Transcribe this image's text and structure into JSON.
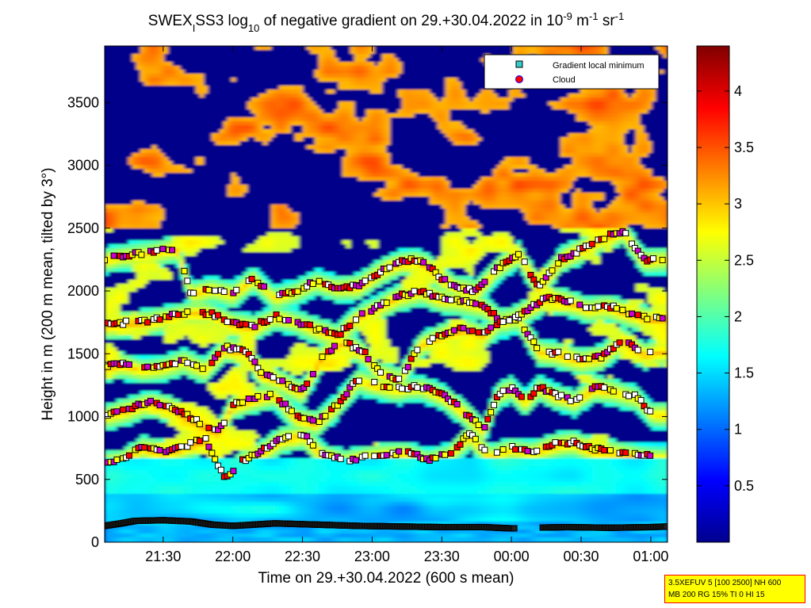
{
  "chart_data": {
    "type": "heatmap",
    "title": {
      "pre": "SWEX",
      "sub1": "I",
      "mid1": "SS3 log",
      "sub2": "10",
      "mid2": " of negative gradient on 29.+30.04.2022 in 10",
      "sup1": "-9",
      "mid3": " m",
      "sup2": "-1",
      "mid4": " sr",
      "sup3": "-1"
    },
    "xlabel": "Time on 29.+30.04.2022 (600 s mean)",
    "ylabel": "Height in m (200 m mean, tilted by 3°)",
    "x_ticks": [
      "21:30",
      "22:00",
      "22:30",
      "23:00",
      "23:30",
      "00:00",
      "00:30",
      "01:00"
    ],
    "y_ticks": [
      "0",
      "500",
      "1000",
      "1500",
      "2000",
      "2500",
      "3000",
      "3500"
    ],
    "ylim": [
      0,
      3950
    ],
    "x_hours_range": [
      21.08,
      25.12
    ],
    "colorbar": {
      "ticks": [
        "0.5",
        "1",
        "1.5",
        "2",
        "2.5",
        "3",
        "3.5",
        "4"
      ],
      "range": [
        0,
        4.4
      ],
      "colormap": "jet"
    },
    "legend": {
      "position": "top-right",
      "entries": [
        {
          "label": "Gradient local minimum",
          "marker": "square",
          "color": "#33cccc"
        },
        {
          "label": "Cloud",
          "marker": "circle",
          "color": "#ff0000"
        }
      ]
    },
    "layers": [
      {
        "name": "L1",
        "points": [
          [
            21.08,
            1010
          ],
          [
            21.25,
            1060
          ],
          [
            21.4,
            1120
          ],
          [
            21.55,
            1080
          ],
          [
            21.75,
            960
          ],
          [
            21.9,
            880
          ],
          [
            22.0,
            1100
          ],
          [
            22.15,
            1150
          ],
          [
            22.3,
            1180
          ],
          [
            22.45,
            1000
          ],
          [
            22.6,
            950
          ],
          [
            22.75,
            1100
          ],
          [
            22.9,
            1300
          ],
          [
            23.05,
            1250
          ],
          [
            23.2,
            1220
          ],
          [
            23.35,
            1240
          ],
          [
            23.5,
            1180
          ],
          [
            23.65,
            1050
          ],
          [
            23.8,
            900
          ],
          [
            23.9,
            1180
          ],
          [
            24.0,
            1230
          ],
          [
            24.1,
            1120
          ],
          [
            24.2,
            1240
          ],
          [
            24.3,
            1180
          ],
          [
            24.45,
            1120
          ],
          [
            24.6,
            1240
          ],
          [
            24.75,
            1200
          ],
          [
            24.9,
            1160
          ],
          [
            25.0,
            1030
          ]
        ]
      },
      {
        "name": "L2",
        "points": [
          [
            21.08,
            1400
          ],
          [
            21.2,
            1420
          ],
          [
            21.35,
            1380
          ],
          [
            21.5,
            1400
          ],
          [
            21.65,
            1450
          ],
          [
            21.8,
            1380
          ],
          [
            21.95,
            1550
          ],
          [
            22.1,
            1520
          ],
          [
            22.2,
            1350
          ],
          [
            22.35,
            1280
          ],
          [
            22.5,
            1200
          ],
          [
            22.65,
            1500
          ],
          [
            22.8,
            1600
          ],
          [
            22.95,
            1500
          ],
          [
            23.05,
            1350
          ],
          [
            23.2,
            1300
          ],
          [
            23.35,
            1580
          ],
          [
            23.5,
            1650
          ],
          [
            23.65,
            1700
          ],
          [
            23.8,
            1650
          ],
          [
            23.95,
            1780
          ],
          [
            24.05,
            1780
          ],
          [
            24.2,
            1520
          ],
          [
            24.35,
            1500
          ],
          [
            24.5,
            1450
          ],
          [
            24.65,
            1480
          ],
          [
            24.8,
            1620
          ],
          [
            24.95,
            1500
          ],
          [
            25.05,
            1520
          ]
        ]
      },
      {
        "name": "L3",
        "points": [
          [
            21.08,
            1730
          ],
          [
            21.25,
            1750
          ],
          [
            21.4,
            1760
          ],
          [
            21.55,
            1800
          ],
          [
            21.7,
            1830
          ],
          [
            21.85,
            1820
          ],
          [
            22.0,
            1740
          ],
          [
            22.15,
            1720
          ],
          [
            22.3,
            1800
          ],
          [
            22.45,
            1760
          ],
          [
            22.6,
            1700
          ],
          [
            22.75,
            1640
          ],
          [
            22.9,
            1800
          ],
          [
            23.05,
            1880
          ],
          [
            23.2,
            1960
          ],
          [
            23.35,
            2000
          ],
          [
            23.5,
            1940
          ],
          [
            23.65,
            1920
          ],
          [
            23.8,
            1880
          ],
          [
            23.95,
            1740
          ],
          [
            24.1,
            1840
          ],
          [
            24.25,
            1950
          ],
          [
            24.4,
            1920
          ],
          [
            24.55,
            1860
          ],
          [
            24.7,
            1880
          ],
          [
            24.85,
            1820
          ],
          [
            25.0,
            1780
          ],
          [
            25.1,
            1790
          ]
        ]
      },
      {
        "name": "L4",
        "points": [
          [
            21.08,
            2250
          ],
          [
            21.2,
            2280
          ],
          [
            21.35,
            2300
          ],
          [
            21.5,
            2320
          ],
          [
            21.6,
            2340
          ],
          [
            21.7,
            1980
          ],
          [
            21.85,
            2020
          ],
          [
            22.0,
            1980
          ],
          [
            22.15,
            2100
          ],
          [
            22.3,
            1950
          ],
          [
            22.45,
            2000
          ],
          [
            22.6,
            2080
          ],
          [
            22.75,
            2030
          ],
          [
            22.9,
            2040
          ],
          [
            23.05,
            2150
          ],
          [
            23.2,
            2230
          ],
          [
            23.3,
            2250
          ],
          [
            23.4,
            2200
          ],
          [
            23.5,
            2100
          ],
          [
            23.6,
            2030
          ],
          [
            23.75,
            2000
          ],
          [
            23.9,
            2180
          ],
          [
            24.05,
            2300
          ],
          [
            24.2,
            2030
          ],
          [
            24.35,
            2250
          ],
          [
            24.5,
            2330
          ],
          [
            24.65,
            2420
          ],
          [
            24.8,
            2480
          ],
          [
            24.95,
            2250
          ],
          [
            25.1,
            2250
          ]
        ]
      },
      {
        "name": "L5",
        "points": [
          [
            21.08,
            640
          ],
          [
            21.2,
            650
          ],
          [
            21.35,
            760
          ],
          [
            21.5,
            720
          ],
          [
            21.65,
            760
          ],
          [
            21.8,
            830
          ],
          [
            21.95,
            500
          ],
          [
            22.05,
            640
          ],
          [
            22.2,
            720
          ],
          [
            22.35,
            830
          ],
          [
            22.5,
            870
          ],
          [
            22.65,
            700
          ],
          [
            22.8,
            650
          ],
          [
            22.95,
            680
          ],
          [
            23.1,
            700
          ],
          [
            23.25,
            720
          ],
          [
            23.4,
            660
          ],
          [
            23.55,
            700
          ],
          [
            23.7,
            860
          ],
          [
            23.85,
            690
          ],
          [
            24.0,
            750
          ],
          [
            24.15,
            720
          ],
          [
            24.3,
            780
          ],
          [
            24.45,
            800
          ],
          [
            24.6,
            740
          ],
          [
            24.75,
            720
          ],
          [
            24.9,
            700
          ],
          [
            25.05,
            690
          ]
        ]
      }
    ],
    "cloud_layer": {
      "name": "ground",
      "points": [
        [
          21.08,
          130
        ],
        [
          21.2,
          150
        ],
        [
          21.3,
          170
        ],
        [
          21.5,
          175
        ],
        [
          21.7,
          165
        ],
        [
          21.85,
          140
        ],
        [
          22.0,
          130
        ],
        [
          22.3,
          150
        ],
        [
          22.6,
          140
        ],
        [
          22.9,
          130
        ],
        [
          23.2,
          125
        ],
        [
          23.5,
          120
        ],
        [
          23.8,
          120
        ],
        [
          24.0,
          110
        ],
        [
          24.15,
          115
        ],
        [
          24.4,
          120
        ],
        [
          24.7,
          115
        ],
        [
          25.0,
          120
        ],
        [
          25.12,
          125
        ]
      ]
    }
  },
  "colors": {
    "background": "#ffffff",
    "legend_box": "#ffffff",
    "info_box_bg": "#ffff00",
    "info_box_border": "#ff0000"
  },
  "info_box": {
    "line1": "3.5XEFUV 5 [100 2500] NH 600",
    "line2": "MB 200 RG 15% TI 0 HI 15"
  }
}
